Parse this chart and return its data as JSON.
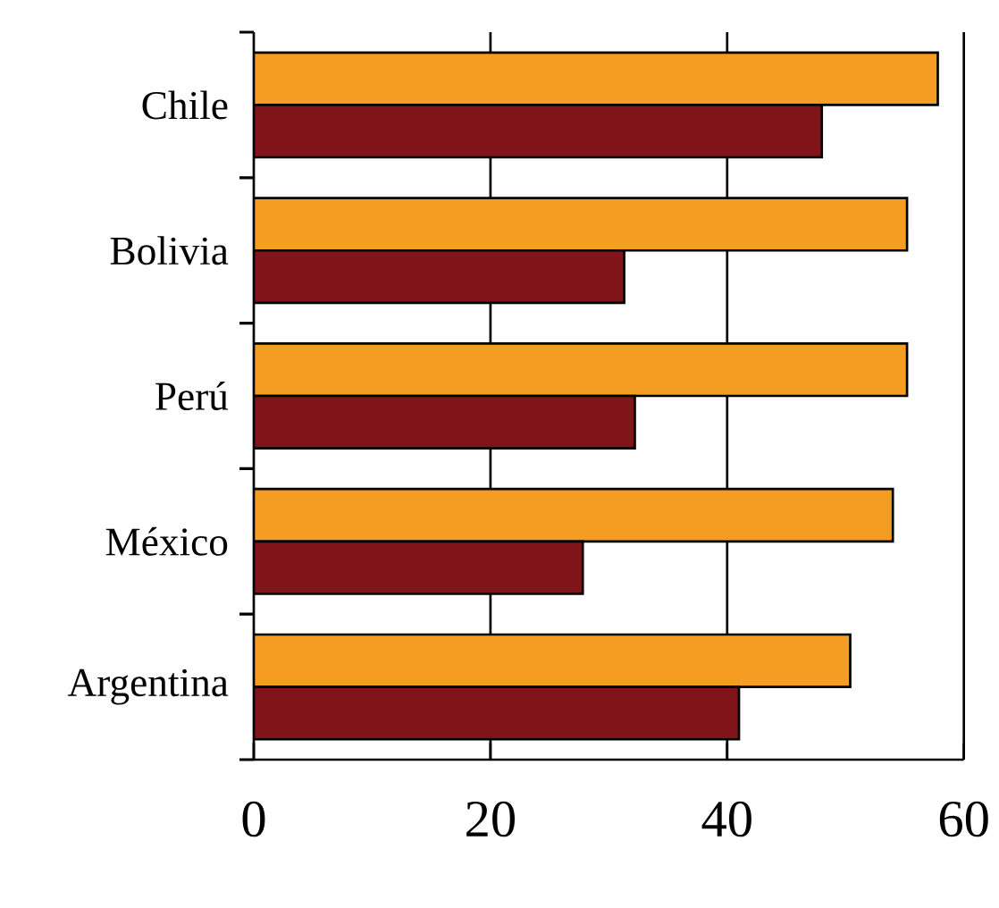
{
  "chart_data": {
    "type": "bar",
    "orientation": "horizontal",
    "categories": [
      "Chile",
      "Bolivia",
      "Perú",
      "México",
      "Argentina"
    ],
    "series": [
      {
        "color": "#f59c22",
        "values": [
          57.8,
          55.2,
          55.2,
          54.0,
          50.4
        ]
      },
      {
        "color": "#7f1518",
        "values": [
          48.0,
          31.3,
          32.2,
          27.8,
          41.0
        ]
      }
    ],
    "xlim": [
      0,
      60
    ],
    "xticks": [
      0,
      20,
      40,
      60
    ],
    "grid": "x"
  }
}
